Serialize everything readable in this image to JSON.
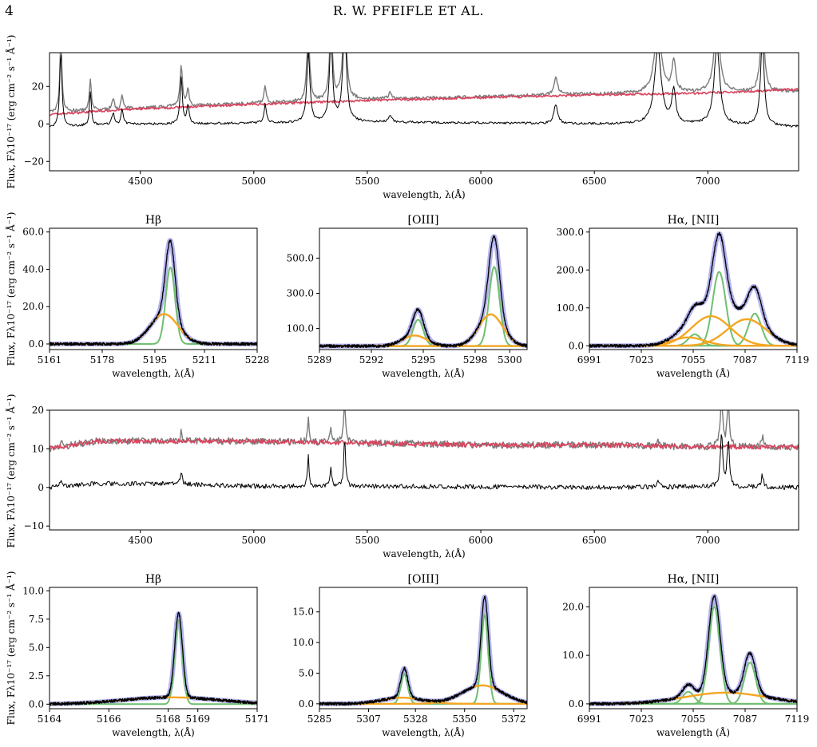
{
  "header": {
    "page_number": "4",
    "running_title": "R. W. PFEIFLE ET AL."
  },
  "flux_label": "Flux, Fλ10⁻¹⁷ (erg cm⁻² s⁻¹ Å⁻¹)",
  "colors": {
    "observed": "#000000",
    "total": "#7b7b7b",
    "host_model": "#d9455f",
    "fit_total": "#9b9bea",
    "narrow": "#6fbf6f",
    "broad": "#f5a623"
  },
  "chart_data": [
    {
      "id": "spec1",
      "type": "line",
      "xlabel": "wavelength, λ(Å)",
      "xlim": [
        4100,
        7400
      ],
      "ylim": [
        -25,
        38
      ],
      "xticks": [
        4500,
        5000,
        5500,
        6000,
        6500,
        7000
      ],
      "yticks": [
        -20,
        0,
        20
      ],
      "xtick_labels": [
        "4500",
        "5000",
        "5500",
        "6000",
        "6500",
        "7000"
      ],
      "ytick_labels": [
        "−20",
        "0",
        "20"
      ],
      "continuum": {
        "x": [
          4100,
          4400,
          4700,
          5000,
          5500,
          6000,
          6500,
          7000,
          7400
        ],
        "total": [
          6,
          8,
          9.5,
          11,
          13,
          14.5,
          16,
          16.5,
          17.5
        ],
        "host": [
          5,
          7.5,
          9,
          10.5,
          12.5,
          14,
          15.5,
          16.5,
          18.5
        ],
        "observed": [
          -2,
          0,
          0,
          0.5,
          1,
          0.5,
          0,
          -0.5,
          -1.5
        ]
      },
      "lines": [
        {
          "c": 4150,
          "a": 40,
          "w": 6
        },
        {
          "c": 4280,
          "a": 18,
          "w": 5
        },
        {
          "c": 4380,
          "a": 6,
          "w": 6
        },
        {
          "c": 4420,
          "a": 8,
          "w": 5
        },
        {
          "c": 4680,
          "a": 25,
          "w": 6
        },
        {
          "c": 4710,
          "a": 10,
          "w": 6
        },
        {
          "c": 5050,
          "a": 10,
          "w": 6
        },
        {
          "c": 5240,
          "a": 38,
          "w": 8
        },
        {
          "c": 5340,
          "a": 45,
          "w": 8
        },
        {
          "c": 5400,
          "a": 50,
          "w": 10
        },
        {
          "c": 5600,
          "a": 4,
          "w": 8
        },
        {
          "c": 6330,
          "a": 10,
          "w": 10
        },
        {
          "c": 6780,
          "a": 40,
          "w": 18
        },
        {
          "c": 6850,
          "a": 18,
          "w": 10
        },
        {
          "c": 7040,
          "a": 42,
          "w": 15
        },
        {
          "c": 7240,
          "a": 45,
          "w": 10
        }
      ]
    },
    {
      "id": "hb1",
      "type": "line",
      "title": "Hβ",
      "xlabel": "wavelength, λ(Å)",
      "xlim": [
        5161,
        5228
      ],
      "ylim": [
        -3,
        62
      ],
      "xticks": [
        5161,
        5178,
        5195,
        5211,
        5228
      ],
      "yticks": [
        0,
        20,
        40,
        60
      ],
      "xtick_labels": [
        "5161",
        "5178",
        "5195",
        "5211",
        "5228"
      ],
      "ytick_labels": [
        "0.0",
        "20.0",
        "40.0",
        "60.0"
      ],
      "components": [
        {
          "role": "narrow",
          "c": 5200,
          "a": 41,
          "s": 1.5
        },
        {
          "role": "broad",
          "c": 5198,
          "a": 16,
          "s": 4.5
        }
      ]
    },
    {
      "id": "oiii1",
      "type": "line",
      "title": "[OIII]",
      "xlabel": "wavelength, λ(Å)",
      "xlim": [
        5289,
        5301
      ],
      "ylim": [
        -20,
        670
      ],
      "xticks": [
        5289,
        5292,
        5295,
        5298,
        5300
      ],
      "yticks": [
        100,
        300,
        500
      ],
      "xtick_labels": [
        "5289",
        "5292",
        "5295",
        "5298",
        "5300"
      ],
      "ytick_labels": [
        "100.0",
        "300.0",
        "500.0"
      ],
      "components": [
        {
          "role": "narrow",
          "c": 5294.7,
          "a": 150,
          "s": 0.3
        },
        {
          "role": "narrow",
          "c": 5299.1,
          "a": 450,
          "s": 0.3
        },
        {
          "role": "broad",
          "c": 5294.5,
          "a": 60,
          "s": 0.7
        },
        {
          "role": "broad",
          "c": 5298.9,
          "a": 180,
          "s": 0.7
        }
      ]
    },
    {
      "id": "ha1",
      "type": "line",
      "title": "Hα, [NII]",
      "xlabel": "wavelength (Å)",
      "xlim": [
        6991,
        7119
      ],
      "ylim": [
        -10,
        310
      ],
      "xticks": [
        6991,
        7023,
        7055,
        7087,
        7119
      ],
      "yticks": [
        0,
        100,
        200,
        300
      ],
      "xtick_labels": [
        "6991",
        "7023",
        "7055",
        "7087",
        "7119"
      ],
      "ytick_labels": [
        "0.0",
        "100.0",
        "200.0",
        "300.0"
      ],
      "components": [
        {
          "role": "narrow",
          "c": 7071,
          "a": 195,
          "s": 4
        },
        {
          "role": "narrow",
          "c": 7093,
          "a": 85,
          "s": 4
        },
        {
          "role": "narrow",
          "c": 7056,
          "a": 30,
          "s": 4
        },
        {
          "role": "broad",
          "c": 7066,
          "a": 78,
          "s": 12
        },
        {
          "role": "broad",
          "c": 7088,
          "a": 70,
          "s": 12
        },
        {
          "role": "broad",
          "c": 7052,
          "a": 22,
          "s": 10
        }
      ]
    },
    {
      "id": "spec2",
      "type": "line",
      "xlabel": "wavelength, λ(Å)",
      "xlim": [
        4100,
        7400
      ],
      "ylim": [
        -11,
        20
      ],
      "xticks": [
        4500,
        5000,
        5500,
        6000,
        6500,
        7000
      ],
      "yticks": [
        -10,
        0,
        10,
        20
      ],
      "xtick_labels": [
        "4500",
        "5000",
        "5500",
        "6000",
        "6500",
        "7000"
      ],
      "ytick_labels": [
        "−10",
        "0",
        "10",
        "20"
      ],
      "continuum": {
        "x": [
          4100,
          4300,
          4600,
          5000,
          5500,
          6000,
          6500,
          7000,
          7400
        ],
        "total": [
          10,
          12,
          12,
          12,
          11.5,
          11,
          11,
          10.5,
          10.5
        ],
        "host": [
          10,
          12,
          12,
          12,
          11.5,
          11,
          11,
          10.5,
          10.5
        ],
        "observed": [
          0,
          1,
          1,
          0.3,
          0.3,
          0.2,
          0,
          0.2,
          0
        ]
      },
      "lines": [
        {
          "c": 4150,
          "a": 2,
          "w": 5
        },
        {
          "c": 4680,
          "a": 3,
          "w": 5
        },
        {
          "c": 5240,
          "a": 8,
          "w": 4
        },
        {
          "c": 5340,
          "a": 5,
          "w": 4
        },
        {
          "c": 5400,
          "a": 12,
          "w": 5
        },
        {
          "c": 6780,
          "a": 1.5,
          "w": 6
        },
        {
          "c": 7060,
          "a": 14,
          "w": 6
        },
        {
          "c": 7090,
          "a": 12,
          "w": 6
        },
        {
          "c": 7240,
          "a": 3,
          "w": 6
        }
      ]
    },
    {
      "id": "hb2",
      "type": "line",
      "title": "Hβ",
      "xlabel": "wavelength, λ(Å)",
      "xlim": [
        5164,
        5171
      ],
      "ylim": [
        -0.4,
        10.3
      ],
      "xticks": [
        5164,
        5166,
        5168,
        5169,
        5171
      ],
      "yticks": [
        0,
        2.5,
        5,
        7.5,
        10
      ],
      "xtick_labels": [
        "5164",
        "5166",
        "5168",
        "5169",
        "5171"
      ],
      "ytick_labels": [
        "0.0",
        "2.5",
        "5.0",
        "7.5",
        "10.0"
      ],
      "components": [
        {
          "role": "narrow",
          "c": 5168.35,
          "a": 7.4,
          "s": 0.13
        },
        {
          "role": "broad",
          "c": 5168.1,
          "a": 0.6,
          "s": 1.6
        }
      ]
    },
    {
      "id": "oiii2",
      "type": "line",
      "title": "[OIII]",
      "xlabel": "wavelength, λ(Å)",
      "xlim": [
        5285,
        5378
      ],
      "ylim": [
        -0.8,
        19
      ],
      "xticks": [
        5285,
        5307,
        5328,
        5350,
        5372
      ],
      "yticks": [
        0,
        5,
        10,
        15
      ],
      "xtick_labels": [
        "5285",
        "5307",
        "5328",
        "5350",
        "5372"
      ],
      "ytick_labels": [
        "0.0",
        "5.0",
        "10.0",
        "15.0"
      ],
      "components": [
        {
          "role": "narrow",
          "c": 5323,
          "a": 4.8,
          "s": 1.6
        },
        {
          "role": "narrow",
          "c": 5359,
          "a": 14.5,
          "s": 1.6
        },
        {
          "role": "broad",
          "c": 5322,
          "a": 1,
          "s": 9
        },
        {
          "role": "broad",
          "c": 5358,
          "a": 3,
          "s": 9
        }
      ]
    },
    {
      "id": "ha2",
      "type": "line",
      "title": "Hα, [NII]",
      "xlabel": "wavelength (Å)",
      "xlim": [
        6991,
        7119
      ],
      "ylim": [
        -1,
        24
      ],
      "xticks": [
        6991,
        7023,
        7055,
        7087,
        7119
      ],
      "yticks": [
        0,
        10,
        20
      ],
      "xtick_labels": [
        "6991",
        "7023",
        "7055",
        "7087",
        "7119"
      ],
      "ytick_labels": [
        "0.0",
        "10.0",
        "20.0"
      ],
      "components": [
        {
          "role": "narrow",
          "c": 7068,
          "a": 20,
          "s": 3.5
        },
        {
          "role": "narrow",
          "c": 7090,
          "a": 8.5,
          "s": 3.5
        },
        {
          "role": "narrow",
          "c": 7052,
          "a": 2.5,
          "s": 3.5
        },
        {
          "role": "broad",
          "c": 7075,
          "a": 2.3,
          "s": 25
        }
      ]
    }
  ]
}
